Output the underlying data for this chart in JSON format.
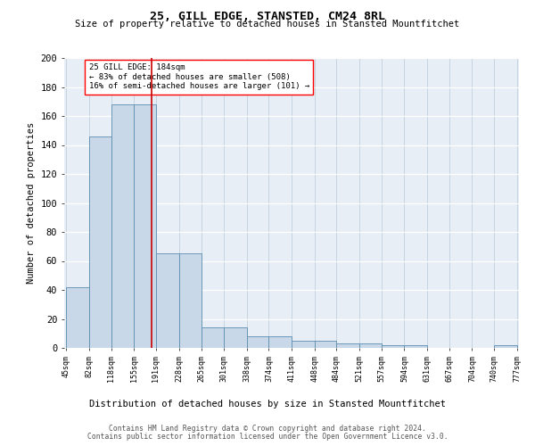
{
  "title": "25, GILL EDGE, STANSTED, CM24 8RL",
  "subtitle": "Size of property relative to detached houses in Stansted Mountfitchet",
  "xlabel": "Distribution of detached houses by size in Stansted Mountfitchet",
  "ylabel": "Number of detached properties",
  "footer1": "Contains HM Land Registry data © Crown copyright and database right 2024.",
  "footer2": "Contains public sector information licensed under the Open Government Licence v3.0.",
  "annotation_line1": "25 GILL EDGE: 184sqm",
  "annotation_line2": "← 83% of detached houses are smaller (508)",
  "annotation_line3": "16% of semi-detached houses are larger (101) →",
  "bar_edges": [
    45,
    82,
    118,
    155,
    191,
    228,
    265,
    301,
    338,
    374,
    411,
    448,
    484,
    521,
    557,
    594,
    631,
    667,
    704,
    740,
    777
  ],
  "bar_heights": [
    42,
    146,
    168,
    168,
    65,
    65,
    14,
    14,
    8,
    8,
    5,
    5,
    3,
    3,
    2,
    2,
    0,
    0,
    0,
    2
  ],
  "property_size": 184,
  "bar_color": "#c8d8e8",
  "bar_edge_color": "#5b8db0",
  "red_line_color": "#cc0000",
  "background_color": "#e8eef5",
  "ylim": [
    0,
    200
  ],
  "yticks": [
    0,
    20,
    40,
    60,
    80,
    100,
    120,
    140,
    160,
    180,
    200
  ]
}
